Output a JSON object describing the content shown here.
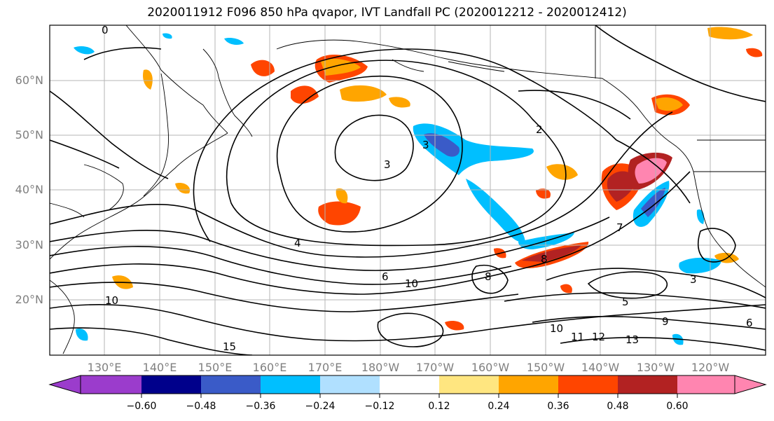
{
  "title": "2020011912 F096 850 hPa qvapor, IVT Landfall PC (2020012212 - 2020012412)",
  "lat_labels": [
    "60°N",
    "50°N",
    "40°N",
    "30°N",
    "20°N"
  ],
  "lon_labels": [
    "130°E",
    "140°E",
    "150°E",
    "160°E",
    "170°E",
    "180°W",
    "170°W",
    "160°W",
    "150°W",
    "140°W",
    "130°W",
    "120°W"
  ],
  "colorbar": {
    "ticks": [
      "−0.60",
      "−0.48",
      "−0.36",
      "−0.24",
      "−0.12",
      "0.12",
      "0.24",
      "0.36",
      "0.48",
      "0.60"
    ],
    "colors": [
      "#9b3ccc",
      "#00008b",
      "#3a5bc8",
      "#00bfff",
      "#b0e0ff",
      "#ffffff",
      "#ffe680",
      "#ffa500",
      "#ff4500",
      "#b22222",
      "#ff85b0"
    ]
  },
  "contour_labels": [
    "0",
    "2",
    "3",
    "4",
    "5",
    "6",
    "7",
    "8",
    "9",
    "10",
    "11",
    "12",
    "13",
    "15"
  ]
}
